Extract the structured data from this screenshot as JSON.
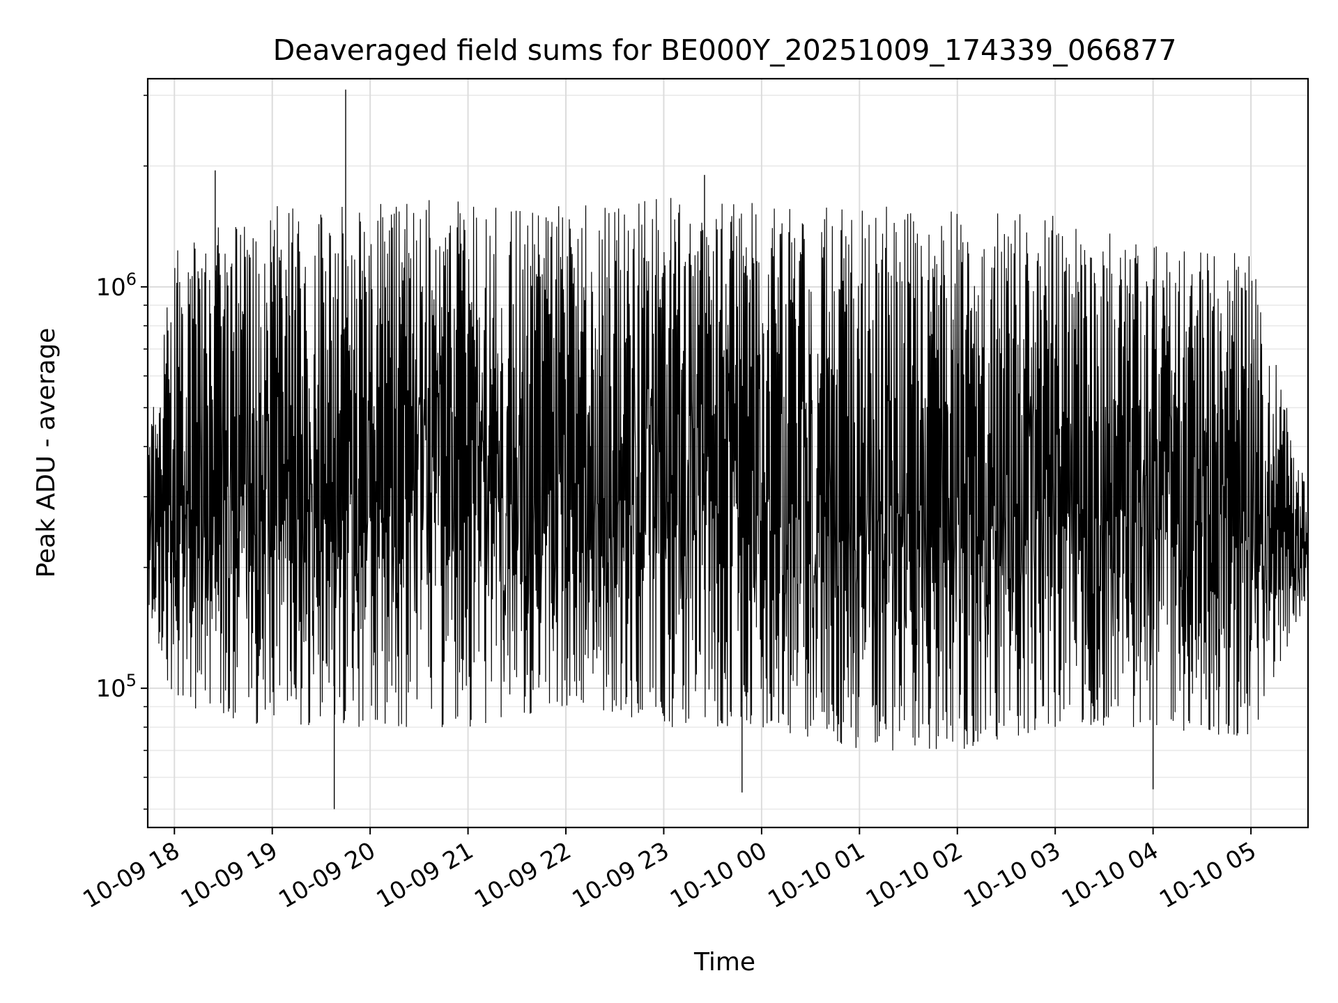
{
  "chart_data": {
    "type": "line",
    "title": "Deaveraged field sums for BE000Y_20251009_174339_066877",
    "xlabel": "Time",
    "ylabel": "Peak ADU - average",
    "yscale": "log",
    "grid": true,
    "line_color": "#000000",
    "x_start": "2025-10-09 17:43:39",
    "x_end": "2025-10-10 05:35:00",
    "xlim": [
      "2025-10-09 17:43:39",
      "2025-10-10 05:35:00"
    ],
    "ylim": [
      45000,
      3300000
    ],
    "x_ticks": [
      {
        "value": "2025-10-09 18:00",
        "label": "10-09 18"
      },
      {
        "value": "2025-10-09 19:00",
        "label": "10-09 19"
      },
      {
        "value": "2025-10-09 20:00",
        "label": "10-09 20"
      },
      {
        "value": "2025-10-09 21:00",
        "label": "10-09 21"
      },
      {
        "value": "2025-10-09 22:00",
        "label": "10-09 22"
      },
      {
        "value": "2025-10-09 23:00",
        "label": "10-09 23"
      },
      {
        "value": "2025-10-10 00:00",
        "label": "10-10 00"
      },
      {
        "value": "2025-10-10 01:00",
        "label": "10-10 01"
      },
      {
        "value": "2025-10-10 02:00",
        "label": "10-10 02"
      },
      {
        "value": "2025-10-10 03:00",
        "label": "10-10 03"
      },
      {
        "value": "2025-10-10 04:00",
        "label": "10-10 04"
      },
      {
        "value": "2025-10-10 05:00",
        "label": "10-10 05"
      }
    ],
    "y_ticks": [
      {
        "value": 100000,
        "base": "10",
        "exp": "5"
      },
      {
        "value": 1000000,
        "base": "10",
        "exp": "6"
      }
    ],
    "envelope": {
      "times": [
        "2025-10-09 17:43:39",
        "2025-10-09 18:00",
        "2025-10-09 19:00",
        "2025-10-09 20:00",
        "2025-10-09 21:00",
        "2025-10-09 22:00",
        "2025-10-09 23:00",
        "2025-10-10 00:00",
        "2025-10-10 01:00",
        "2025-10-10 02:00",
        "2025-10-10 03:00",
        "2025-10-10 04:00",
        "2025-10-10 05:00",
        "2025-10-10 05:35:00"
      ],
      "high": [
        400000,
        1300000,
        1600000,
        1650000,
        1650000,
        1600000,
        1700000,
        1650000,
        1600000,
        1650000,
        1500000,
        1300000,
        1200000,
        300000
      ],
      "low": [
        160000,
        90000,
        80000,
        80000,
        80000,
        90000,
        80000,
        80000,
        70000,
        70000,
        80000,
        80000,
        75000,
        170000
      ]
    },
    "spikes": [
      {
        "time": "2025-10-09 19:45",
        "value": 3100000
      },
      {
        "time": "2025-10-09 18:25",
        "value": 1950000
      },
      {
        "time": "2025-10-09 23:25",
        "value": 1900000
      },
      {
        "time": "2025-10-09 19:38",
        "value": 50000
      },
      {
        "time": "2025-10-09 23:48",
        "value": 55000
      },
      {
        "time": "2025-10-10 04:00",
        "value": 56000
      }
    ]
  }
}
